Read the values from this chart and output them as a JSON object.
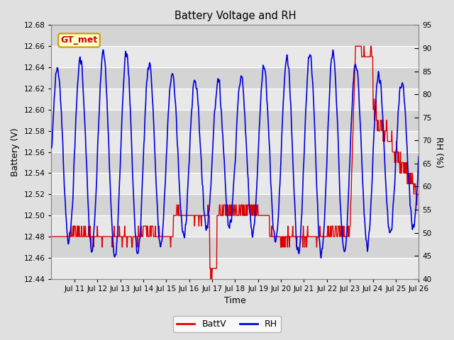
{
  "title": "Battery Voltage and RH",
  "xlabel": "Time",
  "ylabel_left": "Battery (V)",
  "ylabel_right": "RH (%)",
  "annotation_text": "GT_met",
  "annotation_bg": "#ffffcc",
  "annotation_border": "#cc9900",
  "annotation_fg": "#cc0000",
  "ylim_left": [
    12.44,
    12.68
  ],
  "ylim_right": [
    40,
    95
  ],
  "yticks_left": [
    12.44,
    12.46,
    12.48,
    12.5,
    12.52,
    12.54,
    12.56,
    12.58,
    12.6,
    12.62,
    12.64,
    12.66,
    12.68
  ],
  "yticks_right": [
    40,
    45,
    50,
    55,
    60,
    65,
    70,
    75,
    80,
    85,
    90,
    95
  ],
  "bg_color": "#e0e0e0",
  "plot_bg_color": "#d4d4d4",
  "stripe_color": "#e8e8e8",
  "grid_color": "#ffffff",
  "line_color_batt": "#dd0000",
  "line_color_rh": "#0000dd",
  "legend_batt": "BattV",
  "legend_rh": "RH",
  "xtick_labels": [
    "Jul 11",
    "Jul 12",
    "Jul 13",
    "Jul 14",
    "Jul 15",
    "Jul 16",
    "Jul 17",
    "Jul 18",
    "Jul 19",
    "Jul 20",
    "Jul 21",
    "Jul 22",
    "Jul 23",
    "Jul 24",
    "Jul 25",
    "Jul 26"
  ],
  "xtick_positions": [
    11,
    12,
    13,
    14,
    15,
    16,
    17,
    18,
    19,
    20,
    21,
    22,
    23,
    24,
    25,
    26
  ]
}
